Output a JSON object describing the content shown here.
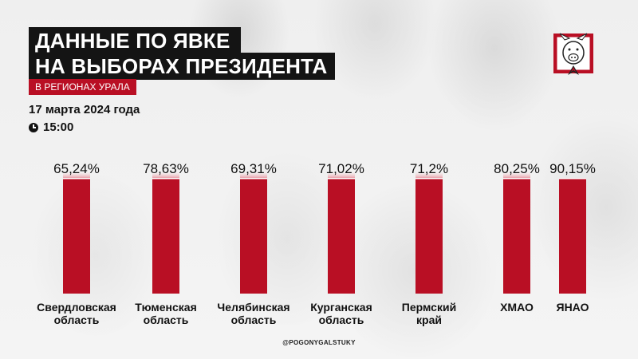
{
  "header": {
    "title_line1": "ДАННЫЕ ПО ЯВКЕ",
    "title_line2": "НА ВЫБОРАХ ПРЕЗИДЕНТА",
    "subtitle": "В РЕГИОНАХ УРАЛА",
    "date": "17 марта 2024 года",
    "time": "15:00"
  },
  "icons": {
    "clock": "clock-icon",
    "logo": "boar-logo"
  },
  "colors": {
    "accent": "#b90f24",
    "bar_light": "#f4c9cf",
    "title_bg": "#141414"
  },
  "footer": {
    "handle": "@POGONYGALSTUKY"
  },
  "chart_data": {
    "type": "bar",
    "categories": [
      [
        "Свердловская",
        "область"
      ],
      [
        "Тюменская",
        "область"
      ],
      [
        "Челябинская",
        "область"
      ],
      [
        "Курганская",
        "область"
      ],
      [
        "Пермский",
        "край"
      ],
      [
        "ХМАО"
      ],
      [
        "ЯНАО"
      ]
    ],
    "values": [
      65.24,
      78.63,
      69.31,
      71.02,
      71.2,
      80.25,
      90.15
    ],
    "value_labels": [
      "65,24%",
      "78,63%",
      "69,31%",
      "71,02%",
      "71,2%",
      "80,25%",
      "90,15%"
    ],
    "ylim": [
      0,
      100
    ],
    "grid": false,
    "legend": "none"
  }
}
